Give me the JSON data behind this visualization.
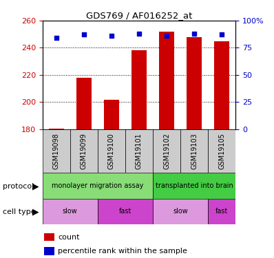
{
  "title": "GDS769 / AF016252_at",
  "samples": [
    "GSM19098",
    "GSM19099",
    "GSM19100",
    "GSM19101",
    "GSM19102",
    "GSM19103",
    "GSM19105"
  ],
  "count_values": [
    180.5,
    218.0,
    201.5,
    238.0,
    252.0,
    248.0,
    245.0
  ],
  "percentile_values": [
    84,
    87,
    86,
    88,
    86,
    88,
    87
  ],
  "ylim_left": [
    180,
    260
  ],
  "ylim_right": [
    0,
    100
  ],
  "yticks_left": [
    180,
    200,
    220,
    240,
    260
  ],
  "yticks_right": [
    0,
    25,
    50,
    75,
    100
  ],
  "ytick_right_labels": [
    "0",
    "25",
    "50",
    "75",
    "100%"
  ],
  "bar_color": "#cc0000",
  "dot_color": "#0000cc",
  "bar_bottom": 180,
  "protocol_groups": [
    {
      "label": "monolayer migration assay",
      "start": 0,
      "end": 4,
      "color": "#88dd77"
    },
    {
      "label": "transplanted into brain",
      "start": 4,
      "end": 7,
      "color": "#44cc44"
    }
  ],
  "celltype_groups": [
    {
      "label": "slow",
      "start": 0,
      "end": 2,
      "color": "#dd99dd"
    },
    {
      "label": "fast",
      "start": 2,
      "end": 4,
      "color": "#cc44cc"
    },
    {
      "label": "slow",
      "start": 4,
      "end": 6,
      "color": "#dd99dd"
    },
    {
      "label": "fast",
      "start": 6,
      "end": 7,
      "color": "#cc44cc"
    }
  ],
  "left_tick_color": "#cc0000",
  "right_tick_color": "#0000cc",
  "sample_bg_color": "#cccccc",
  "grid_yticks": [
    200,
    220,
    240
  ]
}
